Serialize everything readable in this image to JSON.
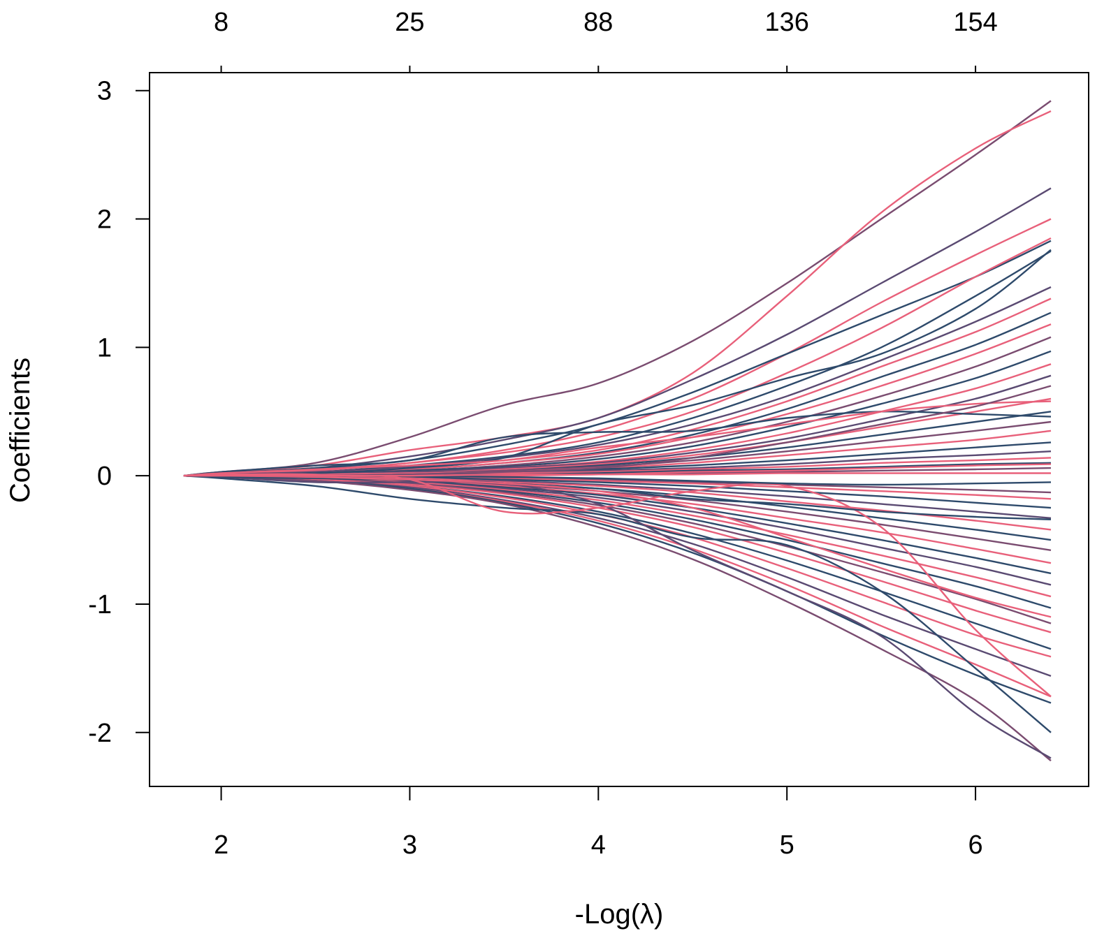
{
  "chart_data": {
    "type": "line",
    "title": "",
    "xlabel": "-Log(λ)",
    "ylabel": "Coefficients",
    "xlim": [
      1.62,
      6.6
    ],
    "ylim": [
      -2.42,
      3.14
    ],
    "x_ticks": [
      "2",
      "3",
      "4",
      "5",
      "6"
    ],
    "x_tick_values": [
      2,
      3,
      4,
      5,
      6
    ],
    "y_ticks": [
      "-2",
      "-1",
      "0",
      "1",
      "2",
      "3"
    ],
    "y_tick_values": [
      -2,
      -1,
      0,
      1,
      2,
      3
    ],
    "top_ticks": [
      "8",
      "25",
      "88",
      "136",
      "154"
    ],
    "top_tick_values": [
      2,
      3,
      4,
      5,
      6
    ],
    "grid": false,
    "legend": "none",
    "colors": [
      "#2e4a6b",
      "#5a4a72",
      "#7a4c70",
      "#e8607a"
    ],
    "x": [
      1.8,
      2.0,
      2.5,
      3.0,
      3.5,
      4.0,
      4.5,
      5.0,
      5.5,
      6.0,
      6.4
    ],
    "series": [
      {
        "color": "#7a4c70",
        "values": [
          0,
          0.03,
          0.1,
          0.3,
          0.55,
          0.72,
          1.05,
          1.5,
          2.0,
          2.5,
          2.92
        ]
      },
      {
        "color": "#e8607a",
        "values": [
          0,
          0.03,
          0.08,
          0.2,
          0.3,
          0.45,
          0.8,
          1.4,
          2.05,
          2.55,
          2.84
        ]
      },
      {
        "color": "#5a4a72",
        "values": [
          0,
          0.02,
          0.06,
          0.15,
          0.28,
          0.45,
          0.75,
          1.1,
          1.5,
          1.9,
          2.24
        ]
      },
      {
        "color": "#e8607a",
        "values": [
          0,
          0.01,
          0.05,
          0.1,
          0.2,
          0.35,
          0.6,
          0.95,
          1.35,
          1.72,
          2.0
        ]
      },
      {
        "color": "#2e4a6b",
        "values": [
          0,
          0.02,
          0.06,
          0.12,
          0.24,
          0.4,
          0.65,
          0.95,
          1.25,
          1.55,
          1.83
        ]
      },
      {
        "color": "#2e4a6b",
        "values": [
          0,
          0.01,
          0.03,
          0.08,
          0.15,
          0.26,
          0.45,
          0.7,
          1.0,
          1.4,
          1.75
        ]
      },
      {
        "color": "#e8607a",
        "values": [
          0,
          0.01,
          0.04,
          0.1,
          0.18,
          0.3,
          0.5,
          0.8,
          1.15,
          1.55,
          1.85
        ]
      },
      {
        "color": "#5a4a72",
        "values": [
          0,
          0.01,
          0.03,
          0.07,
          0.14,
          0.24,
          0.4,
          0.62,
          0.9,
          1.2,
          1.47
        ]
      },
      {
        "color": "#e8607a",
        "values": [
          0,
          0.01,
          0.02,
          0.06,
          0.12,
          0.2,
          0.36,
          0.58,
          0.85,
          1.12,
          1.38
        ]
      },
      {
        "color": "#2e4a6b",
        "values": [
          0,
          0.01,
          0.02,
          0.05,
          0.1,
          0.18,
          0.32,
          0.52,
          0.77,
          1.02,
          1.27
        ]
      },
      {
        "color": "#e8607a",
        "values": [
          0,
          0.0,
          0.02,
          0.05,
          0.1,
          0.17,
          0.3,
          0.48,
          0.7,
          0.95,
          1.18
        ]
      },
      {
        "color": "#7a4c70",
        "values": [
          0,
          0.0,
          0.02,
          0.04,
          0.08,
          0.15,
          0.26,
          0.42,
          0.62,
          0.85,
          1.08
        ]
      },
      {
        "color": "#2e4a6b",
        "values": [
          0,
          0.0,
          0.01,
          0.04,
          0.07,
          0.13,
          0.23,
          0.38,
          0.56,
          0.76,
          0.97
        ]
      },
      {
        "color": "#e8607a",
        "values": [
          0,
          0.0,
          0.01,
          0.03,
          0.06,
          0.11,
          0.2,
          0.33,
          0.5,
          0.68,
          0.87
        ]
      },
      {
        "color": "#5a4a72",
        "values": [
          0,
          0.0,
          0.01,
          0.03,
          0.06,
          0.1,
          0.18,
          0.29,
          0.44,
          0.6,
          0.78
        ]
      },
      {
        "color": "#e8607a",
        "values": [
          0,
          0.0,
          0.01,
          0.02,
          0.05,
          0.09,
          0.16,
          0.26,
          0.38,
          0.5,
          0.6
        ]
      },
      {
        "color": "#2e4a6b",
        "values": [
          0,
          0.0,
          0.01,
          0.02,
          0.04,
          0.08,
          0.14,
          0.22,
          0.32,
          0.42,
          0.5
        ]
      },
      {
        "color": "#7a4c70",
        "values": [
          0,
          0.0,
          0.01,
          0.02,
          0.04,
          0.07,
          0.12,
          0.19,
          0.27,
          0.35,
          0.42
        ]
      },
      {
        "color": "#e8607a",
        "values": [
          0,
          0.0,
          0.01,
          0.02,
          0.03,
          0.06,
          0.1,
          0.16,
          0.22,
          0.28,
          0.35
        ]
      },
      {
        "color": "#2e4a6b",
        "values": [
          0,
          0.0,
          0.0,
          0.01,
          0.03,
          0.05,
          0.08,
          0.12,
          0.17,
          0.22,
          0.26
        ]
      },
      {
        "color": "#5a4a72",
        "values": [
          0,
          0.0,
          0.0,
          0.01,
          0.02,
          0.04,
          0.06,
          0.09,
          0.13,
          0.16,
          0.19
        ]
      },
      {
        "color": "#e8607a",
        "values": [
          0,
          0.0,
          0.0,
          0.01,
          0.02,
          0.03,
          0.05,
          0.07,
          0.1,
          0.12,
          0.14
        ]
      },
      {
        "color": "#2e4a6b",
        "values": [
          0,
          0.0,
          0.0,
          0.01,
          0.01,
          0.02,
          0.04,
          0.05,
          0.07,
          0.09,
          0.1
        ]
      },
      {
        "color": "#7a4c70",
        "values": [
          0,
          0.0,
          0.0,
          0.0,
          0.01,
          0.01,
          0.02,
          0.03,
          0.04,
          0.05,
          0.06
        ]
      },
      {
        "color": "#e8607a",
        "values": [
          0,
          0.0,
          0.0,
          0.0,
          0.0,
          0.01,
          0.01,
          0.02,
          0.02,
          0.02,
          0.02
        ]
      },
      {
        "color": "#2e4a6b",
        "values": [
          0,
          0.03,
          0.08,
          0.12,
          0.3,
          0.34,
          0.35,
          0.45,
          0.5,
          0.48,
          0.46
        ]
      },
      {
        "color": "#2e4a6b",
        "values": [
          0,
          0.01,
          0.02,
          0.06,
          0.14,
          0.4,
          0.55,
          0.76,
          0.95,
          1.3,
          1.76
        ]
      },
      {
        "color": "#e8607a",
        "values": [
          0,
          0.02,
          0.05,
          0.08,
          0.12,
          0.22,
          0.3,
          0.4,
          0.5,
          0.56,
          0.58
        ]
      },
      {
        "color": "#7a4c70",
        "values": [
          0,
          0.0,
          0.0,
          -0.01,
          -0.02,
          -0.03,
          -0.05,
          -0.07,
          -0.09,
          -0.11,
          -0.13
        ]
      },
      {
        "color": "#e8607a",
        "values": [
          0,
          0.0,
          0.0,
          -0.01,
          -0.02,
          -0.04,
          -0.06,
          -0.09,
          -0.12,
          -0.15,
          -0.18
        ]
      },
      {
        "color": "#2e4a6b",
        "values": [
          0,
          0.0,
          -0.01,
          -0.01,
          -0.03,
          -0.05,
          -0.08,
          -0.12,
          -0.16,
          -0.21,
          -0.25
        ]
      },
      {
        "color": "#5a4a72",
        "values": [
          0,
          0.0,
          -0.01,
          -0.02,
          -0.04,
          -0.07,
          -0.11,
          -0.16,
          -0.22,
          -0.28,
          -0.33
        ]
      },
      {
        "color": "#e8607a",
        "values": [
          0,
          0.0,
          -0.01,
          -0.02,
          -0.05,
          -0.08,
          -0.13,
          -0.2,
          -0.27,
          -0.35,
          -0.42
        ]
      },
      {
        "color": "#2e4a6b",
        "values": [
          0,
          0.0,
          -0.01,
          -0.03,
          -0.06,
          -0.1,
          -0.16,
          -0.24,
          -0.33,
          -0.42,
          -0.5
        ]
      },
      {
        "color": "#7a4c70",
        "values": [
          0,
          0.0,
          -0.01,
          -0.03,
          -0.07,
          -0.12,
          -0.19,
          -0.28,
          -0.38,
          -0.49,
          -0.58
        ]
      },
      {
        "color": "#e8607a",
        "values": [
          0,
          0.0,
          -0.02,
          -0.04,
          -0.08,
          -0.14,
          -0.22,
          -0.33,
          -0.44,
          -0.57,
          -0.68
        ]
      },
      {
        "color": "#2e4a6b",
        "values": [
          0,
          0.0,
          -0.02,
          -0.04,
          -0.09,
          -0.15,
          -0.25,
          -0.37,
          -0.5,
          -0.64,
          -0.76
        ]
      },
      {
        "color": "#5a4a72",
        "values": [
          0,
          0.0,
          -0.02,
          -0.05,
          -0.1,
          -0.17,
          -0.28,
          -0.41,
          -0.56,
          -0.71,
          -0.85
        ]
      },
      {
        "color": "#e8607a",
        "values": [
          0,
          0.0,
          -0.02,
          -0.05,
          -0.11,
          -0.19,
          -0.31,
          -0.46,
          -0.62,
          -0.79,
          -0.94
        ]
      },
      {
        "color": "#2e4a6b",
        "values": [
          0,
          0.0,
          -0.02,
          -0.06,
          -0.12,
          -0.21,
          -0.34,
          -0.5,
          -0.68,
          -0.86,
          -1.03
        ]
      },
      {
        "color": "#7a4c70",
        "values": [
          0,
          -0.01,
          -0.03,
          -0.06,
          -0.13,
          -0.23,
          -0.37,
          -0.55,
          -0.75,
          -0.96,
          -1.15
        ]
      },
      {
        "color": "#e8607a",
        "values": [
          0,
          -0.01,
          -0.03,
          -0.07,
          -0.14,
          -0.25,
          -0.4,
          -0.6,
          -0.82,
          -1.05,
          -1.22
        ]
      },
      {
        "color": "#2e4a6b",
        "values": [
          0,
          -0.01,
          -0.03,
          -0.08,
          -0.16,
          -0.28,
          -0.45,
          -0.66,
          -0.9,
          -1.15,
          -1.35
        ]
      },
      {
        "color": "#e8607a",
        "values": [
          0,
          -0.01,
          -0.03,
          -0.08,
          -0.17,
          -0.3,
          -0.48,
          -0.72,
          -0.98,
          -1.24,
          -1.41
        ]
      },
      {
        "color": "#5a4a72",
        "values": [
          0,
          -0.01,
          -0.04,
          -0.09,
          -0.19,
          -0.33,
          -0.53,
          -0.79,
          -1.08,
          -1.35,
          -1.56
        ]
      },
      {
        "color": "#e8607a",
        "values": [
          0,
          -0.01,
          -0.04,
          -0.1,
          -0.2,
          -0.35,
          -0.57,
          -0.85,
          -1.17,
          -1.47,
          -1.72
        ]
      },
      {
        "color": "#2e4a6b",
        "values": [
          0,
          -0.01,
          -0.04,
          -0.1,
          -0.21,
          -0.37,
          -0.6,
          -0.9,
          -1.24,
          -1.55,
          -1.77
        ]
      },
      {
        "color": "#7a4c70",
        "values": [
          0,
          -0.01,
          -0.04,
          -0.11,
          -0.22,
          -0.4,
          -0.65,
          -0.98,
          -1.35,
          -1.75,
          -2.22
        ]
      },
      {
        "color": "#2e4a6b",
        "values": [
          0,
          -0.02,
          -0.08,
          -0.18,
          -0.25,
          -0.3,
          -0.48,
          -0.54,
          -0.9,
          -1.5,
          -2.0
        ]
      },
      {
        "color": "#5a4a72",
        "values": [
          0,
          -0.01,
          -0.05,
          -0.05,
          -0.06,
          -0.22,
          -0.58,
          -0.9,
          -1.25,
          -1.85,
          -2.2
        ]
      },
      {
        "color": "#e8607a",
        "values": [
          0,
          0.01,
          0.01,
          -0.03,
          -0.28,
          -0.25,
          -0.12,
          -0.08,
          -0.4,
          -1.2,
          -1.72
        ]
      },
      {
        "color": "#2e4a6b",
        "values": [
          0,
          -0.01,
          -0.02,
          -0.03,
          -0.06,
          -0.1,
          -0.18,
          -0.22,
          -0.28,
          -0.32,
          -0.34
        ]
      },
      {
        "color": "#e8607a",
        "values": [
          0,
          0.0,
          -0.01,
          -0.03,
          -0.06,
          -0.12,
          -0.25,
          -0.48,
          -0.72,
          -0.95,
          -1.1
        ]
      },
      {
        "color": "#7a4c70",
        "values": [
          0,
          0.0,
          0.0,
          0.01,
          0.03,
          0.06,
          0.14,
          0.26,
          0.4,
          0.54,
          0.7
        ]
      },
      {
        "color": "#2e4a6b",
        "values": [
          0,
          0.0,
          0.0,
          0.0,
          -0.01,
          -0.02,
          -0.04,
          -0.06,
          -0.07,
          -0.06,
          -0.05
        ]
      },
      {
        "color": "#e8607a",
        "values": [
          0,
          0.0,
          0.0,
          0.0,
          0.01,
          0.01,
          0.03,
          0.04,
          0.06,
          0.08,
          0.09
        ]
      }
    ]
  }
}
